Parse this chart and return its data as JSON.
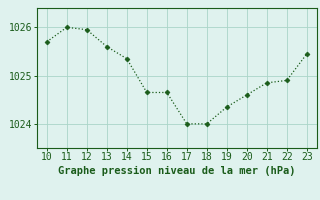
{
  "x": [
    10,
    11,
    12,
    13,
    14,
    15,
    16,
    17,
    18,
    19,
    20,
    21,
    22,
    23
  ],
  "y": [
    1025.7,
    1026.0,
    1025.95,
    1025.6,
    1025.35,
    1024.65,
    1024.65,
    1024.0,
    1024.0,
    1024.35,
    1024.6,
    1024.85,
    1024.9,
    1025.45
  ],
  "line_color": "#1a5c1a",
  "marker": "D",
  "marker_size": 2.5,
  "bg_color": "#dff2ee",
  "grid_color": "#aad5c8",
  "xlabel": "Graphe pression niveau de la mer (hPa)",
  "xlabel_color": "#1a5c1a",
  "yticks": [
    1024,
    1025,
    1026
  ],
  "xticks": [
    10,
    11,
    12,
    13,
    14,
    15,
    16,
    17,
    18,
    19,
    20,
    21,
    22,
    23
  ],
  "ylim": [
    1023.5,
    1026.4
  ],
  "xlim": [
    9.5,
    23.5
  ],
  "tick_color": "#1a5c1a",
  "spine_color": "#1a5c1a",
  "font_size": 7.0,
  "label_font_size": 7.5
}
